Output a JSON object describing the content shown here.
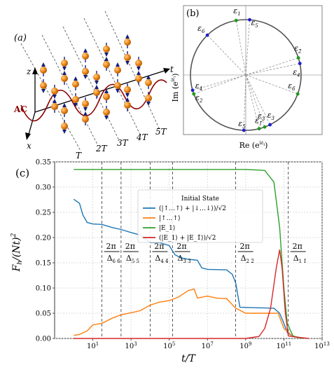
{
  "panel_a": {
    "label": "(a)",
    "axis_z": "z",
    "axis_x": "x",
    "axis_t": "t",
    "ac_label": "AC",
    "time_labels": [
      "T",
      "2T",
      "3T",
      "4T",
      "5T"
    ]
  },
  "panel_b": {
    "label": "(b)",
    "ylabel": "Im (e^{iε_l})",
    "xlabel": "Re (e^{iε_l})",
    "eps_labels": [
      {
        "t": "ε",
        "s": "1"
      },
      {
        "t": "ε",
        "s": "5"
      },
      {
        "t": "ε",
        "s": "6"
      },
      {
        "t": "ε",
        "s": "2̄"
      },
      {
        "t": "ε",
        "s": "4"
      },
      {
        "t": "ε",
        "s": "4̄"
      },
      {
        "t": "ε",
        "s": "2"
      },
      {
        "t": "ε",
        "s": "6̄"
      },
      {
        "t": "ε",
        "s": "3"
      },
      {
        "t": "ε",
        "s": "5̄"
      },
      {
        "t": "ε",
        "s": "1̄"
      },
      {
        "t": "ε",
        "s": "3̄"
      }
    ],
    "colors": {
      "blue": "#1f1fcf",
      "green": "#1c9a1c",
      "circle": "#555555"
    }
  },
  "panel_c": {
    "label": "(c)",
    "ylabel": "F_h/(Nt)^2",
    "xlabel": "t/T",
    "vline_labels": [
      {
        "num": "2π",
        "den": "Δ",
        "sub": "6 6̄"
      },
      {
        "num": "2π",
        "den": "Δ",
        "sub": "5 5̄"
      },
      {
        "num": "2π",
        "den": "Δ",
        "sub": "4 4̄"
      },
      {
        "num": "2π",
        "den": "Δ",
        "sub": "3 3̄"
      },
      {
        "num": "2π",
        "den": "Δ",
        "sub": "2 2̄"
      },
      {
        "num": "2π",
        "den": "Δ",
        "sub": "1 1̄"
      }
    ]
  },
  "chart_data": {
    "type": "line",
    "title": "",
    "xlabel": "t/T",
    "ylabel": "F_h/(Nt)^2",
    "xscale": "log",
    "xlim": [
      0.1,
      10000000000000
    ],
    "ylim": [
      0,
      0.35
    ],
    "xticks": [
      "10^1",
      "10^3",
      "10^5",
      "10^7",
      "10^9",
      "10^11",
      "10^13"
    ],
    "yticks": [
      "0.00",
      "0.05",
      "0.10",
      "0.15",
      "0.20",
      "0.25",
      "0.30",
      "0.35"
    ],
    "grid": true,
    "legend_title": "Initial State",
    "legend_position": "upper-right",
    "vlines_x": [
      30,
      300,
      10000,
      150000,
      300000000,
      170000000000
    ],
    "series": [
      {
        "name": "(|↑…↑⟩ + |↓…↓⟩)/√2",
        "color": "#1f77b4",
        "points": [
          [
            1,
            0.276
          ],
          [
            2,
            0.268
          ],
          [
            3,
            0.245
          ],
          [
            5,
            0.23
          ],
          [
            10,
            0.227
          ],
          [
            30,
            0.226
          ],
          [
            100,
            0.22
          ],
          [
            300,
            0.216
          ],
          [
            1000,
            0.21
          ],
          [
            3000,
            0.205
          ],
          [
            10000,
            0.19
          ],
          [
            30000,
            0.19
          ],
          [
            100000,
            0.184
          ],
          [
            200000,
            0.166
          ],
          [
            400000,
            0.16
          ],
          [
            1000000,
            0.157
          ],
          [
            3000000,
            0.155
          ],
          [
            5000000,
            0.14
          ],
          [
            10000000,
            0.137
          ],
          [
            100000000,
            0.136
          ],
          [
            200000000,
            0.127
          ],
          [
            300000000,
            0.11
          ],
          [
            500000000,
            0.062
          ],
          [
            3000000000,
            0.061
          ],
          [
            30000000000,
            0.06
          ],
          [
            60000000000,
            0.05
          ],
          [
            100000000000,
            0.03
          ],
          [
            150000000000,
            0.012
          ],
          [
            300000000000,
            0.004
          ],
          [
            1000000000000,
            0.0
          ]
        ]
      },
      {
        "name": "|↑…↑⟩",
        "color": "#ff7f0e",
        "points": [
          [
            1,
            0.006
          ],
          [
            2,
            0.008
          ],
          [
            5,
            0.015
          ],
          [
            10,
            0.027
          ],
          [
            30,
            0.03
          ],
          [
            100,
            0.04
          ],
          [
            300,
            0.047
          ],
          [
            1000,
            0.051
          ],
          [
            3000,
            0.055
          ],
          [
            10000,
            0.066
          ],
          [
            30000,
            0.072
          ],
          [
            100000,
            0.075
          ],
          [
            300000,
            0.082
          ],
          [
            1000000,
            0.095
          ],
          [
            2000000,
            0.098
          ],
          [
            3000000,
            0.08
          ],
          [
            10000000,
            0.084
          ],
          [
            30000000,
            0.08
          ],
          [
            100000000,
            0.079
          ],
          [
            300000000,
            0.06
          ],
          [
            1000000000,
            0.05
          ],
          [
            10000000000,
            0.05
          ],
          [
            50000000000,
            0.05
          ],
          [
            100000000000,
            0.02
          ],
          [
            300000000000,
            0.004
          ],
          [
            1000000000000,
            0.0
          ]
        ]
      },
      {
        "name": "|E_1⟩",
        "color": "#2ca02c",
        "points": [
          [
            1,
            0.335
          ],
          [
            100000000,
            0.335
          ],
          [
            1000000000,
            0.335
          ],
          [
            10000000000,
            0.333
          ],
          [
            30000000000,
            0.31
          ],
          [
            60000000000,
            0.22
          ],
          [
            100000000000,
            0.1
          ],
          [
            150000000000,
            0.03
          ],
          [
            300000000000,
            0.005
          ],
          [
            1000000000000,
            0.0
          ]
        ]
      },
      {
        "name": "(|E_1⟩ + |E_1̄⟩)/√2",
        "color": "#d62728",
        "points": [
          [
            1,
            0.0
          ],
          [
            1000000000,
            0.0
          ],
          [
            5000000000,
            0.004
          ],
          [
            10000000000,
            0.02
          ],
          [
            20000000000,
            0.06
          ],
          [
            40000000000,
            0.14
          ],
          [
            60000000000,
            0.176
          ],
          [
            80000000000,
            0.14
          ],
          [
            120000000000,
            0.05
          ],
          [
            170000000000,
            0.005
          ],
          [
            400000000000,
            0.003
          ],
          [
            2000000000000,
            0.0
          ]
        ]
      }
    ]
  }
}
